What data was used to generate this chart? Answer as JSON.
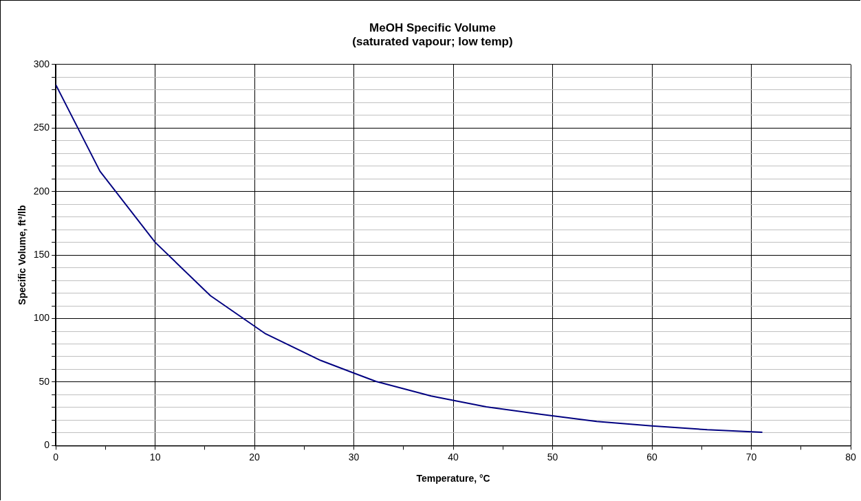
{
  "chart_data": {
    "type": "line",
    "title": "MeOH Specific Volume\n(saturated vapour; low temp)",
    "xlabel": "Temperature, °C",
    "ylabel": "Specific Volume, ft³/lb",
    "x": [
      0,
      4.44,
      10,
      15.56,
      21.11,
      26.67,
      32.22,
      37.78,
      43.33,
      48.89,
      54.44,
      60,
      65.56,
      71.11
    ],
    "series": [
      {
        "color": "#000080",
        "values": [
          284,
          216,
          160,
          118,
          88,
          67,
          50.5,
          39,
          30.5,
          24.5,
          19,
          15.5,
          12.5,
          10.5
        ]
      }
    ],
    "xlim": [
      0,
      80
    ],
    "ylim": [
      0,
      300
    ],
    "xticks": [
      0,
      {
        "value": 5,
        "label": null
      },
      10,
      {
        "value": 15,
        "label": null
      },
      20,
      {
        "value": 25,
        "label": null
      },
      30,
      {
        "value": 35,
        "label": null
      },
      40,
      {
        "value": 45,
        "label": null
      },
      50,
      {
        "value": 55,
        "label": null
      },
      60,
      {
        "value": 65,
        "label": null
      },
      70,
      {
        "value": 75,
        "label": null
      },
      80
    ],
    "yticks": [
      0,
      {
        "value": 10,
        "label": null
      },
      {
        "value": 20,
        "label": null
      },
      {
        "value": 30,
        "label": null
      },
      {
        "value": 40,
        "label": null
      },
      50,
      {
        "value": 60,
        "label": null
      },
      {
        "value": 70,
        "label": null
      },
      {
        "value": 80,
        "label": null
      },
      {
        "value": 90,
        "label": null
      },
      100,
      {
        "value": 110,
        "label": null
      },
      {
        "value": 120,
        "label": null
      },
      {
        "value": 130,
        "label": null
      },
      {
        "value": 140,
        "label": null
      },
      150,
      {
        "value": 160,
        "label": null
      },
      {
        "value": 170,
        "label": null
      },
      {
        "value": 180,
        "label": null
      },
      {
        "value": 190,
        "label": null
      },
      200,
      {
        "value": 210,
        "label": null
      },
      {
        "value": 220,
        "label": null
      },
      {
        "value": 230,
        "label": null
      },
      {
        "value": 240,
        "label": null
      },
      250,
      {
        "value": 260,
        "label": null
      },
      {
        "value": 270,
        "label": null
      },
      {
        "value": 280,
        "label": null
      },
      {
        "value": 290,
        "label": null
      },
      300
    ],
    "grid": true,
    "legend": false,
    "marker": "none",
    "line_style": "solid"
  }
}
